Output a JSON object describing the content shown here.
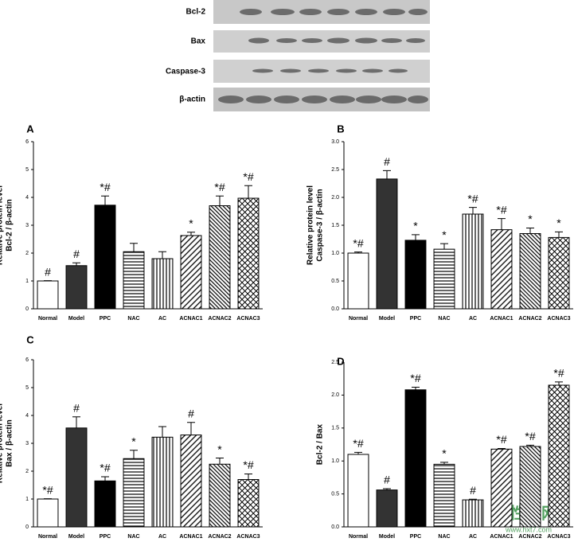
{
  "blot": {
    "labels": [
      "Bcl-2",
      "Bax",
      "Caspase-3",
      "β-actin"
    ]
  },
  "watermark": {
    "title": "活性炭网",
    "url": "www.hxt7.com"
  },
  "chart_data": [
    {
      "type": "bar",
      "panel": "A",
      "ylabel": [
        "Relative protein level",
        "Bcl-2 / β-actin"
      ],
      "categories": [
        "Normal",
        "Model",
        "PPC",
        "NAC",
        "AC",
        "ACNAC1",
        "ACNAC2",
        "ACNAC3"
      ],
      "values": [
        1.0,
        1.55,
        3.72,
        2.05,
        1.8,
        2.63,
        3.7,
        3.97
      ],
      "errors": [
        0.01,
        0.1,
        0.33,
        0.3,
        0.25,
        0.12,
        0.35,
        0.45
      ],
      "annotations": [
        "#",
        "#",
        "*#",
        null,
        null,
        "*",
        "*#",
        "*#"
      ],
      "colors": [
        "#ffffff",
        "#333333",
        "#000000",
        "#000000",
        "#000000",
        "#000000",
        "#000000",
        "#000000"
      ],
      "patterns": [
        "none",
        "none",
        "none",
        "horizontal",
        "vertical",
        "diag-down",
        "diag-up",
        "cross"
      ],
      "ylim": [
        0,
        6
      ],
      "yticks": [
        0,
        1,
        2,
        3,
        4,
        5,
        6
      ]
    },
    {
      "type": "bar",
      "panel": "B",
      "ylabel": [
        "Relative protein level",
        "Caspase-3 / β-actin"
      ],
      "categories": [
        "Normal",
        "Model",
        "PPC",
        "NAC",
        "AC",
        "ACNAC1",
        "ACNAC2",
        "ACNAC3"
      ],
      "values": [
        1.0,
        2.33,
        1.23,
        1.07,
        1.7,
        1.42,
        1.35,
        1.28
      ],
      "errors": [
        0.02,
        0.15,
        0.1,
        0.1,
        0.12,
        0.2,
        0.1,
        0.1
      ],
      "annotations": [
        "*#",
        "#",
        "*",
        "*",
        "*#",
        "*#",
        "*",
        "*"
      ],
      "colors": [
        "#ffffff",
        "#333333",
        "#000000",
        "#000000",
        "#000000",
        "#000000",
        "#000000",
        "#000000"
      ],
      "patterns": [
        "none",
        "none",
        "none",
        "horizontal",
        "vertical",
        "diag-down",
        "diag-up",
        "cross"
      ],
      "ylim": [
        0,
        3
      ],
      "yticks": [
        {
          "value": 0,
          "label": "0.0"
        },
        0.5,
        {
          "value": 1,
          "label": "1.0"
        },
        1.5,
        {
          "value": 2,
          "label": "2.0"
        },
        2.5,
        {
          "value": 3,
          "label": "3.0"
        }
      ]
    },
    {
      "type": "bar",
      "panel": "C",
      "ylabel": [
        "Relative protein level",
        "Bax / β-actin"
      ],
      "categories": [
        "Normal",
        "Model",
        "PPC",
        "NAC",
        "AC",
        "ACNAC1",
        "ACNAC2",
        "ACNAC3"
      ],
      "values": [
        1.0,
        3.55,
        1.65,
        2.45,
        3.22,
        3.3,
        2.25,
        1.7
      ],
      "errors": [
        0.01,
        0.4,
        0.15,
        0.3,
        0.38,
        0.45,
        0.22,
        0.2
      ],
      "annotations": [
        "*#",
        "#",
        "*#",
        "*",
        null,
        "#",
        "*",
        "*#"
      ],
      "colors": [
        "#ffffff",
        "#333333",
        "#000000",
        "#000000",
        "#000000",
        "#000000",
        "#000000",
        "#000000"
      ],
      "patterns": [
        "none",
        "none",
        "none",
        "horizontal",
        "vertical",
        "diag-down",
        "diag-up",
        "cross"
      ],
      "ylim": [
        0,
        6
      ],
      "yticks": [
        0,
        1,
        2,
        3,
        4,
        5,
        6
      ]
    },
    {
      "type": "bar",
      "panel": "D",
      "ylabel": [
        "Bcl-2 / Bax"
      ],
      "categories": [
        "Normal",
        "Model",
        "PPC",
        "NAC",
        "AC",
        "ACNAC1",
        "ACNAC2",
        "ACNAC3"
      ],
      "values": [
        1.1,
        0.56,
        2.08,
        0.95,
        0.41,
        1.18,
        1.22,
        2.15
      ],
      "errors": [
        0.03,
        0.02,
        0.04,
        0.03,
        0.01,
        0.01,
        0.02,
        0.05
      ],
      "annotations": [
        "*#",
        "#",
        "*#",
        "*",
        "#",
        "*#",
        "*#",
        "*#"
      ],
      "colors": [
        "#ffffff",
        "#333333",
        "#000000",
        "#000000",
        "#000000",
        "#000000",
        "#000000",
        "#000000"
      ],
      "patterns": [
        "none",
        "none",
        "none",
        "horizontal",
        "vertical",
        "diag-down",
        "diag-up",
        "cross"
      ],
      "ylim": [
        0,
        2.5
      ],
      "yticks": [
        {
          "value": 0,
          "label": "0.0"
        },
        0.5,
        {
          "value": 1,
          "label": "1.0"
        },
        1.5,
        {
          "value": 2,
          "label": "2.0"
        },
        2.5
      ]
    }
  ]
}
